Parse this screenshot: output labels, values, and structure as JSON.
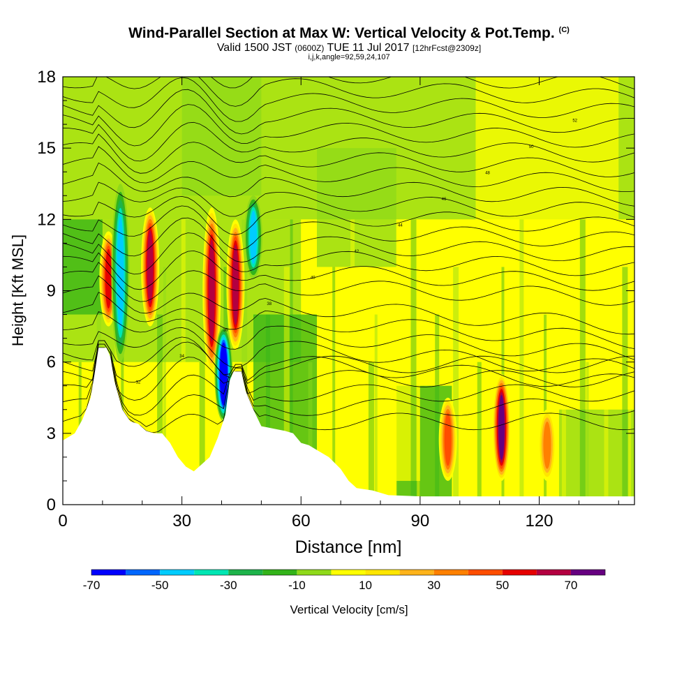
{
  "header": {
    "title": "Wind-Parallel Section at Max W: Vertical Velocity & Pot.Temp.",
    "title_mark": "(C)",
    "valid_prefix": "Valid 1500 JST",
    "valid_utc": "(0600Z)",
    "valid_date": "TUE 11 Jul 2017",
    "forecast": "[12hrFcst@2309z]",
    "indices": "i,j,k,angle=92,59,24,107"
  },
  "chart_data": {
    "type": "heatmap",
    "xlabel": "Distance [nm]",
    "ylabel": "Height [Kft MSL]",
    "xlim": [
      0,
      144
    ],
    "ylim": [
      0,
      18
    ],
    "x_ticks": [
      0,
      30,
      60,
      90,
      120
    ],
    "x_tick_labels": [
      "0",
      "30",
      "60",
      "90",
      "120"
    ],
    "y_ticks": [
      0,
      3,
      6,
      9,
      12,
      15,
      18
    ],
    "y_tick_labels": [
      "0",
      "3",
      "6",
      "9",
      "12",
      "15",
      "18"
    ],
    "colorbar": {
      "title": "Vertical Velocity [cm/s]",
      "levels": [
        -70,
        -60,
        -50,
        -40,
        -30,
        -20,
        -10,
        0,
        10,
        20,
        30,
        40,
        50,
        60,
        70,
        80
      ],
      "tick_values": [
        -70,
        -50,
        -30,
        -10,
        10,
        30,
        50,
        70
      ],
      "tick_labels": [
        "-70",
        "-50",
        "-30",
        "-10",
        "10",
        "30",
        "50",
        "70"
      ],
      "colors": [
        "#0000ff",
        "#0066ff",
        "#00ccff",
        "#00e6b3",
        "#1db34a",
        "#33b31a",
        "#8fd91a",
        "#ffff00",
        "#ffe600",
        "#ffb31a",
        "#ff8000",
        "#ff4d00",
        "#e60000",
        "#b30040",
        "#660080"
      ]
    },
    "terrain": [
      [
        0,
        2.7
      ],
      [
        3,
        3.0
      ],
      [
        5,
        3.6
      ],
      [
        7,
        4.5
      ],
      [
        8,
        5.5
      ],
      [
        9,
        6.6
      ],
      [
        11,
        6.6
      ],
      [
        12,
        6.2
      ],
      [
        13,
        5.2
      ],
      [
        15,
        4.0
      ],
      [
        17,
        3.5
      ],
      [
        19,
        3.4
      ],
      [
        21,
        3.1
      ],
      [
        23,
        3.0
      ],
      [
        25,
        3.0
      ],
      [
        27,
        2.6
      ],
      [
        29,
        2.0
      ],
      [
        31,
        1.6
      ],
      [
        33,
        1.4
      ],
      [
        35,
        1.7
      ],
      [
        37,
        2.0
      ],
      [
        39,
        2.8
      ],
      [
        41,
        3.8
      ],
      [
        42,
        5.2
      ],
      [
        43,
        5.6
      ],
      [
        45,
        5.6
      ],
      [
        46,
        4.8
      ],
      [
        48,
        4.0
      ],
      [
        50,
        3.3
      ],
      [
        53,
        3.2
      ],
      [
        56,
        3.1
      ],
      [
        58,
        3.0
      ],
      [
        60,
        2.6
      ],
      [
        62,
        2.5
      ],
      [
        64,
        2.3
      ],
      [
        67,
        2.0
      ],
      [
        70,
        1.5
      ],
      [
        72,
        1.0
      ],
      [
        74,
        0.7
      ],
      [
        78,
        0.6
      ],
      [
        82,
        0.4
      ],
      [
        90,
        0.35
      ],
      [
        120,
        0.35
      ],
      [
        144,
        0.35
      ]
    ],
    "updraft_cores": [
      {
        "x": 11.5,
        "y_range": [
          7.5,
          11.5
        ],
        "w": 50
      },
      {
        "x": 22,
        "y_range": [
          7.5,
          12.5
        ],
        "w": 60
      },
      {
        "x": 37.5,
        "y_range": [
          5.5,
          12.5
        ],
        "w": 60
      },
      {
        "x": 43.5,
        "y_range": [
          6.5,
          12.0
        ],
        "w": 60
      },
      {
        "x": 97,
        "y_range": [
          1.0,
          4.5
        ],
        "w": 40
      },
      {
        "x": 110.5,
        "y_range": [
          1.0,
          5.5
        ],
        "w": 70
      },
      {
        "x": 122,
        "y_range": [
          1.0,
          4.0
        ],
        "w": 30
      }
    ],
    "downdraft_cores": [
      {
        "x": 14.5,
        "y_range": [
          6.0,
          13.5
        ],
        "w": -40
      },
      {
        "x": 40.5,
        "y_range": [
          3.5,
          7.5
        ],
        "w": -70
      },
      {
        "x": 48,
        "y_range": [
          9.5,
          13.0
        ],
        "w": -40
      }
    ],
    "isentrope_labels": [
      "30",
      "32",
      "34",
      "36",
      "38",
      "40",
      "42",
      "44",
      "46",
      "48",
      "50",
      "52"
    ]
  }
}
